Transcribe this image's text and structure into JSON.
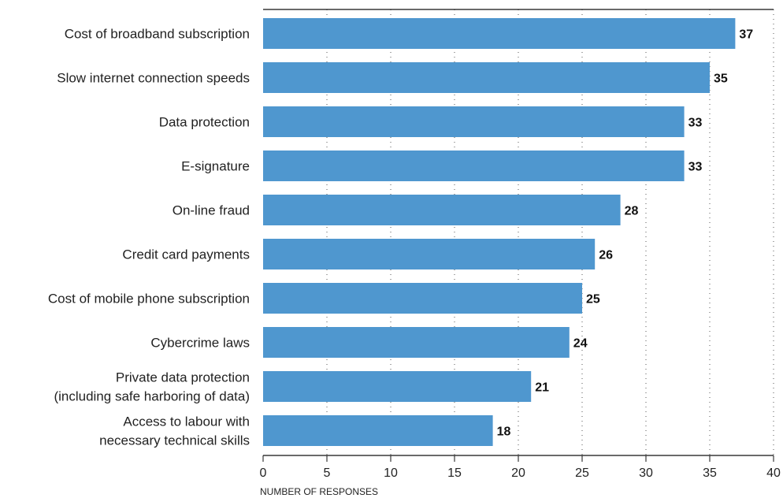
{
  "chart_data": {
    "type": "bar",
    "orientation": "horizontal",
    "categories": [
      [
        "Cost of broadband subscription"
      ],
      [
        "Slow internet connection speeds"
      ],
      [
        "Data protection"
      ],
      [
        "E-signature"
      ],
      [
        "On-line fraud"
      ],
      [
        "Credit card payments"
      ],
      [
        "Cost of mobile phone subscription"
      ],
      [
        "Cybercrime laws"
      ],
      [
        "Private data protection",
        "(including safe harboring of data)"
      ],
      [
        "Access to labour with",
        "necessary technical skills"
      ]
    ],
    "values": [
      37,
      35,
      33,
      33,
      28,
      26,
      25,
      24,
      21,
      18
    ],
    "xlabel": "NUMBER OF RESPONSES",
    "xlim": [
      0,
      40
    ],
    "xticks": [
      0,
      5,
      10,
      15,
      20,
      25,
      30,
      35,
      40
    ],
    "grid": "vertical dotted",
    "bar_color": "#4f97cf"
  }
}
